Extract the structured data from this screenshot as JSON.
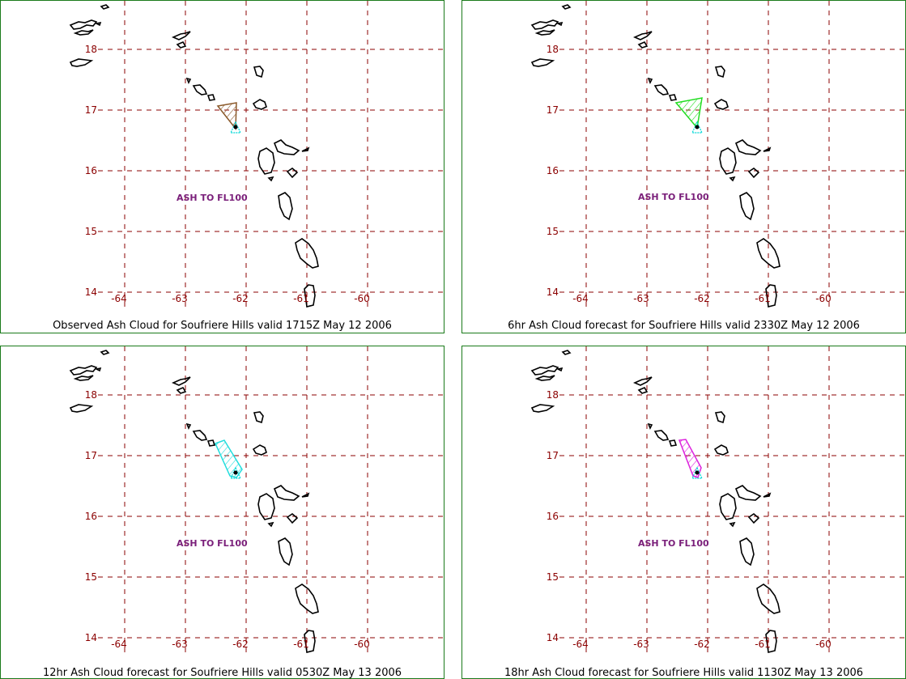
{
  "map": {
    "lon_ticks": [
      "-64",
      "-63",
      "-62",
      "-61",
      "-60"
    ],
    "lat_ticks": [
      "18",
      "17",
      "16",
      "15",
      "14"
    ],
    "ash_label": "ASH TO FL100",
    "colors": {
      "grid": "#8b0000",
      "coast": "#000000",
      "frame": "#1a7a1a",
      "label": "#7a1f7a",
      "volcano": "#00d8d8"
    }
  },
  "panels": [
    {
      "caption": "Observed Ash Cloud for Soufriere  Hills valid 1715Z May 12 2006",
      "cloud_color": "#8b5a2b"
    },
    {
      "caption": "6hr Ash Cloud forecast for Soufriere  Hills valid 2330Z May 12 2006",
      "cloud_color": "#22dd22"
    },
    {
      "caption": "12hr Ash Cloud forecast for Soufriere  Hills valid 0530Z May 13 2006",
      "cloud_color": "#22dddd"
    },
    {
      "caption": "18hr Ash Cloud forecast for Soufriere  Hills valid 1130Z May 13 2006",
      "cloud_color": "#dd22dd"
    }
  ]
}
